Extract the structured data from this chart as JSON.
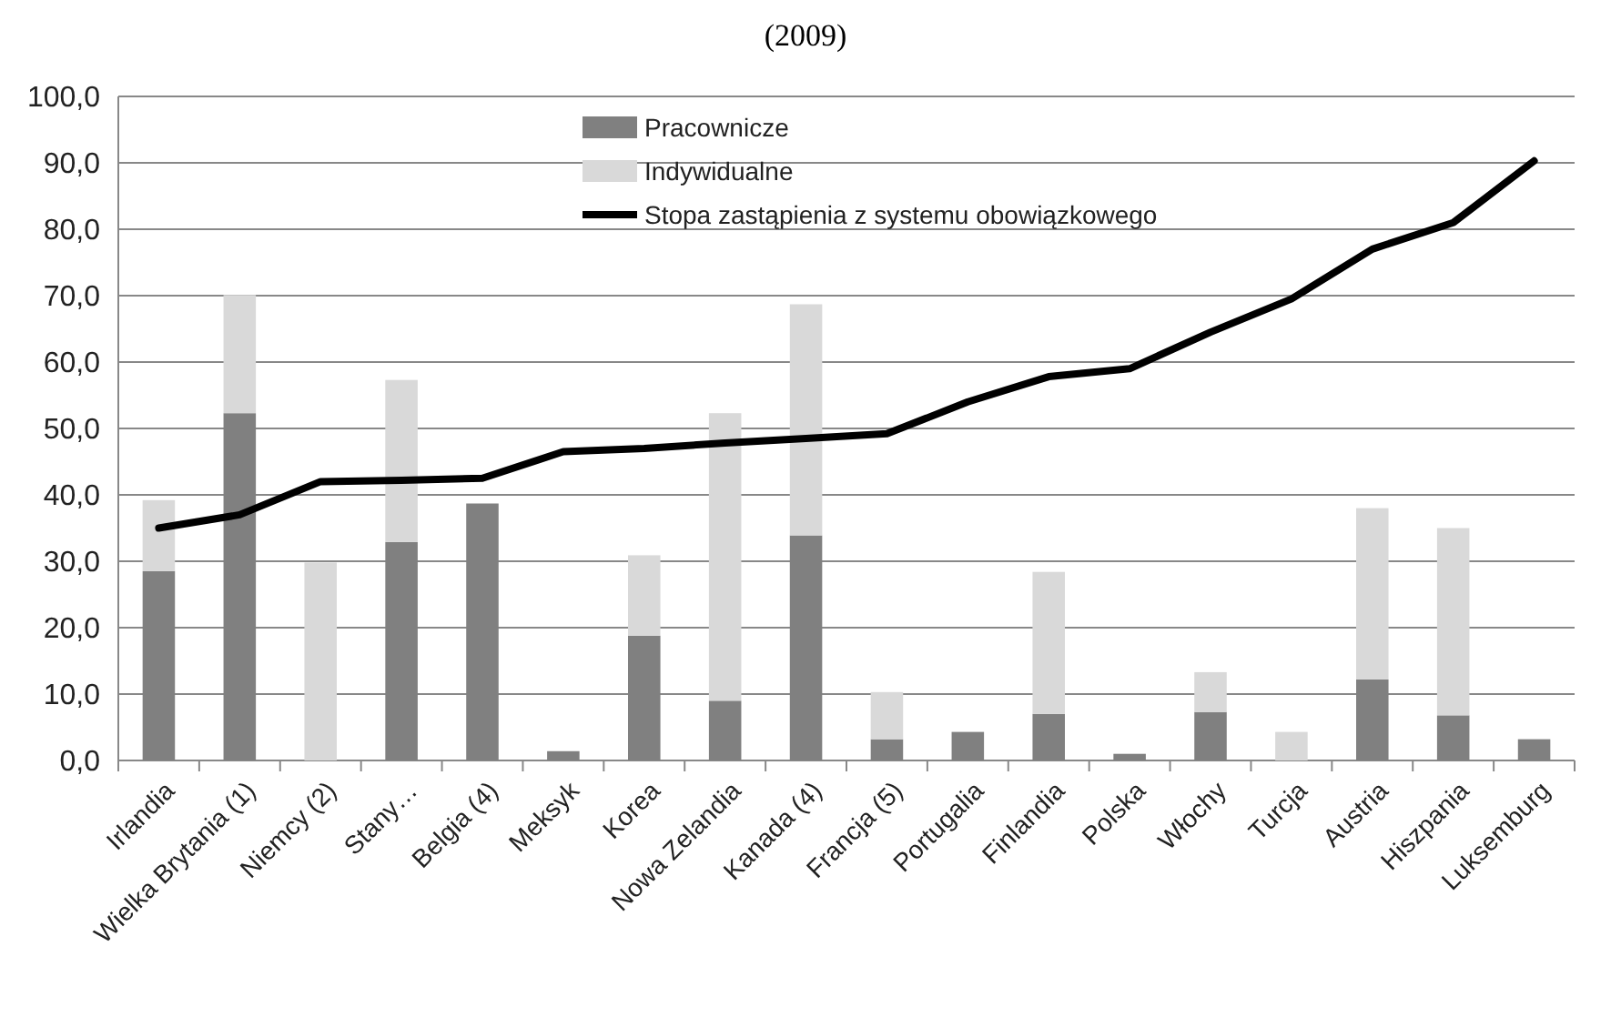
{
  "chart_data": {
    "type": "bar",
    "title": "(2009)",
    "stacked": true,
    "grid": "y",
    "legend": "top",
    "categories": [
      "Irlandia",
      "Wielka Brytania (1)",
      "Niemcy (2)",
      "Stany…",
      "Belgia (4)",
      "Meksyk",
      "Korea",
      "Nowa Zelandia",
      "Kanada (4)",
      "Francja (5)",
      "Portugalia",
      "Finlandia",
      "Polska",
      "Włochy",
      "Turcja",
      "Austria",
      "Hiszpania",
      "Luksemburg"
    ],
    "series": [
      {
        "name": "Pracownicze",
        "color": "#808080",
        "values": [
          28.5,
          52.3,
          0,
          32.9,
          38.7,
          1.4,
          18.8,
          9.0,
          33.9,
          3.2,
          4.3,
          7.0,
          1.0,
          7.3,
          0,
          12.2,
          6.8,
          3.2
        ]
      },
      {
        "name": "Indywidualne",
        "color": "#d9d9d9",
        "values": [
          10.7,
          17.8,
          29.8,
          24.4,
          0,
          0,
          12.1,
          43.3,
          34.8,
          7.1,
          0,
          21.4,
          0,
          6.0,
          4.3,
          25.8,
          28.2,
          0
        ]
      },
      {
        "name": "Stopa zastąpienia z systemu obowiązkowego",
        "type": "line",
        "color": "#000000",
        "values": [
          35.0,
          37.0,
          42.0,
          42.2,
          42.5,
          46.5,
          47.0,
          47.8,
          48.5,
          49.2,
          54.0,
          57.8,
          59.0,
          64.5,
          69.5,
          77.0,
          81.0,
          90.3
        ]
      }
    ],
    "ylim": [
      0,
      100
    ],
    "yticks": [
      {
        "value": 0,
        "label": "0,0"
      },
      {
        "value": 10,
        "label": "10,0"
      },
      {
        "value": 20,
        "label": "20,0"
      },
      {
        "value": 30,
        "label": "30,0"
      },
      {
        "value": 40,
        "label": "40,0"
      },
      {
        "value": 50,
        "label": "50,0"
      },
      {
        "value": 60,
        "label": "60,0"
      },
      {
        "value": 70,
        "label": "70,0"
      },
      {
        "value": 80,
        "label": "80,0"
      },
      {
        "value": 90,
        "label": "90,0"
      },
      {
        "value": 100,
        "label": "100,0"
      }
    ]
  }
}
